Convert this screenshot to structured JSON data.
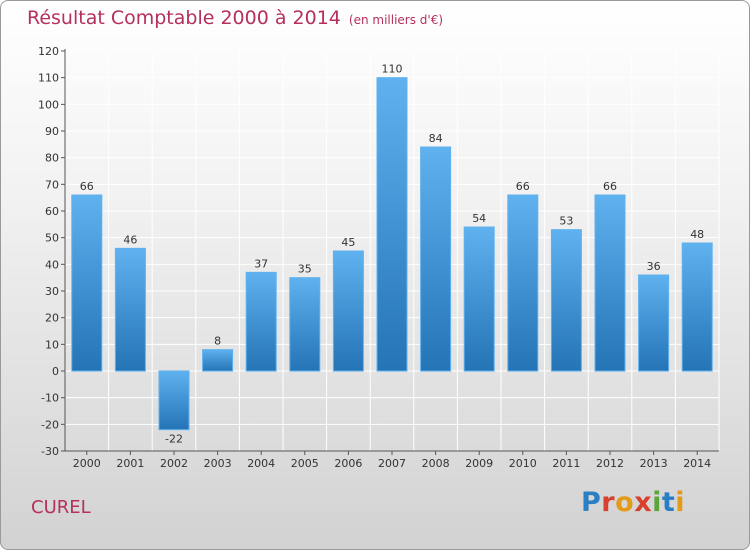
{
  "title": "Résultat Comptable 2000 à 2014",
  "subtitle": "(en milliers d'€)",
  "place": "CUREL",
  "logo": {
    "text": "Proxiti",
    "letters": [
      {
        "ch": "P",
        "color": "#2a7fc4"
      },
      {
        "ch": "r",
        "color": "#d83f2c"
      },
      {
        "ch": "o",
        "color": "#e39a18"
      },
      {
        "ch": "x",
        "color": "#d83f2c"
      },
      {
        "ch": "i",
        "color": "#5aa63c"
      },
      {
        "ch": "t",
        "color": "#2a7fc4"
      },
      {
        "ch": "i",
        "color": "#e39a18"
      }
    ]
  },
  "colors": {
    "title": "#b5305a",
    "bar_top": "#5fb1ef",
    "bar_bottom": "#2474b6",
    "grid": "#ffffff"
  },
  "chart_data": {
    "type": "bar",
    "title": "Résultat Comptable 2000 à 2014",
    "subtitle": "(en milliers d'€)",
    "xlabel": "",
    "ylabel": "",
    "categories": [
      "2000",
      "2001",
      "2002",
      "2003",
      "2004",
      "2005",
      "2006",
      "2007",
      "2008",
      "2009",
      "2010",
      "2011",
      "2012",
      "2013",
      "2014"
    ],
    "values": [
      66,
      46,
      -22,
      8,
      37,
      35,
      45,
      110,
      84,
      54,
      66,
      53,
      66,
      36,
      48
    ],
    "ylim": [
      -30,
      120
    ],
    "yticks": [
      120,
      110,
      100,
      90,
      80,
      70,
      60,
      50,
      40,
      30,
      20,
      10,
      0,
      -10,
      -20,
      -30
    ],
    "grid": true,
    "legend": "none"
  }
}
